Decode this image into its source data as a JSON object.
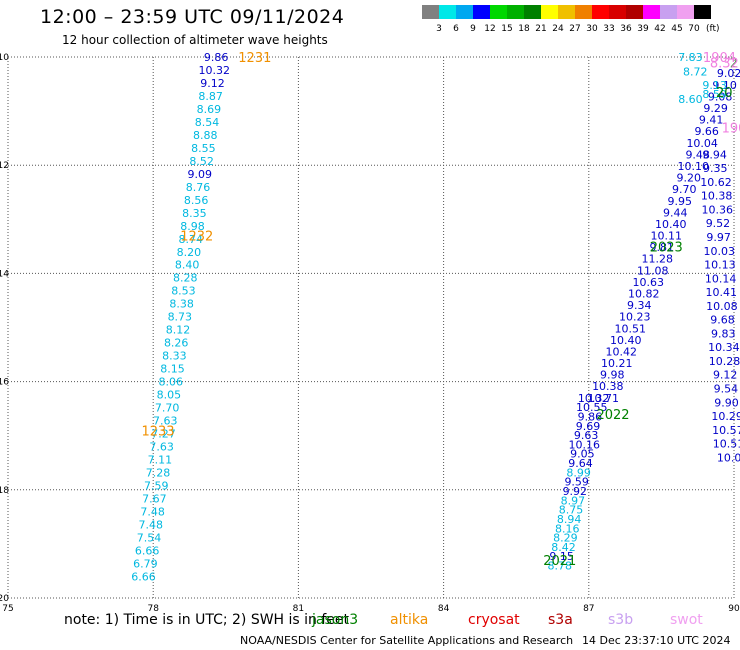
{
  "header": {
    "title": "12:00 – 23:59 UTC 09/11/2024",
    "subtitle": "12 hour collection of altimeter wave heights"
  },
  "colorbar": {
    "colors": [
      "#808080",
      "#00e8e8",
      "#00a8f0",
      "#0000ff",
      "#00d800",
      "#00b000",
      "#008000",
      "#ffff00",
      "#f0c000",
      "#f08000",
      "#ff0000",
      "#d80000",
      "#b00000",
      "#ff00ff",
      "#c8a0f0",
      "#f0a0f0",
      "#000000"
    ],
    "labels": [
      "3",
      "6",
      "9",
      "12",
      "15",
      "18",
      "21",
      "24",
      "27",
      "30",
      "33",
      "36",
      "39",
      "42",
      "45",
      "70"
    ],
    "unit": "(ft)"
  },
  "map": {
    "lon_min": 75,
    "lon_max": 90,
    "lat_min": -20,
    "lat_max": -10,
    "x_ticks": [
      "75",
      "78",
      "81",
      "84",
      "87",
      "90"
    ],
    "y_ticks": [
      "-10",
      "-12",
      "-14",
      "-16",
      "-18",
      "-20"
    ],
    "colors": {
      "cyan": "#00b8e0",
      "blue": "#0000c8",
      "orange": "#f09000",
      "green": "#008000",
      "pink": "#f080e0"
    },
    "tracks": [
      {
        "lon_start": 79.3,
        "lat_start": -10.0,
        "lon_end": 77.8,
        "lat_end": -19.6,
        "values": [
          {
            "v": "9.86",
            "c": "blue"
          },
          {
            "v": "10.32",
            "c": "blue"
          },
          {
            "v": "9.12",
            "c": "blue"
          },
          {
            "v": "8.87",
            "c": "cyan"
          },
          {
            "v": "8.69",
            "c": "cyan"
          },
          {
            "v": "8.54",
            "c": "cyan"
          },
          {
            "v": "8.88",
            "c": "cyan"
          },
          {
            "v": "8.55",
            "c": "cyan"
          },
          {
            "v": "8.52",
            "c": "cyan"
          },
          {
            "v": "9.09",
            "c": "blue"
          },
          {
            "v": "8.76",
            "c": "cyan"
          },
          {
            "v": "8.56",
            "c": "cyan"
          },
          {
            "v": "8.35",
            "c": "cyan"
          },
          {
            "v": "8.98",
            "c": "cyan"
          },
          {
            "v": "8.74",
            "c": "cyan"
          },
          {
            "v": "8.20",
            "c": "cyan"
          },
          {
            "v": "8.40",
            "c": "cyan"
          },
          {
            "v": "8.28",
            "c": "cyan"
          },
          {
            "v": "8.53",
            "c": "cyan"
          },
          {
            "v": "8.38",
            "c": "cyan"
          },
          {
            "v": "8.73",
            "c": "cyan"
          },
          {
            "v": "8.12",
            "c": "cyan"
          },
          {
            "v": "8.26",
            "c": "cyan"
          },
          {
            "v": "8.33",
            "c": "cyan"
          },
          {
            "v": "8.15",
            "c": "cyan"
          },
          {
            "v": "8.06",
            "c": "cyan"
          },
          {
            "v": "8.05",
            "c": "cyan"
          },
          {
            "v": "7.70",
            "c": "cyan"
          },
          {
            "v": "7.63",
            "c": "cyan"
          },
          {
            "v": "7.27",
            "c": "cyan"
          },
          {
            "v": "7.63",
            "c": "cyan"
          },
          {
            "v": "7.11",
            "c": "cyan"
          },
          {
            "v": "7.28",
            "c": "cyan"
          },
          {
            "v": "7.59",
            "c": "cyan"
          },
          {
            "v": "7.67",
            "c": "cyan"
          },
          {
            "v": "7.48",
            "c": "cyan"
          },
          {
            "v": "7.48",
            "c": "cyan"
          },
          {
            "v": "7.54",
            "c": "cyan"
          },
          {
            "v": "6.66",
            "c": "cyan"
          },
          {
            "v": "6.79",
            "c": "cyan"
          },
          {
            "v": "6.66",
            "c": "cyan"
          }
        ]
      },
      {
        "lon_start": 89.9,
        "lat_start": -10.3,
        "lon_end": 87.3,
        "lat_end": -16.3,
        "values": [
          {
            "v": "9.02",
            "c": "blue"
          },
          {
            "v": "9.10",
            "c": "blue"
          },
          {
            "v": "9.08",
            "c": "blue"
          },
          {
            "v": "9.29",
            "c": "blue"
          },
          {
            "v": "9.41",
            "c": "blue"
          },
          {
            "v": "9.66",
            "c": "blue"
          },
          {
            "v": "10.04",
            "c": "blue"
          },
          {
            "v": "9.48",
            "c": "blue"
          },
          {
            "v": "10.10",
            "c": "blue"
          },
          {
            "v": "9.20",
            "c": "blue"
          },
          {
            "v": "9.70",
            "c": "blue"
          },
          {
            "v": "9.95",
            "c": "blue"
          },
          {
            "v": "9.44",
            "c": "blue"
          },
          {
            "v": "10.40",
            "c": "blue"
          },
          {
            "v": "10.11",
            "c": "blue"
          },
          {
            "v": "9.81",
            "c": "blue"
          },
          {
            "v": "11.28",
            "c": "blue"
          },
          {
            "v": "11.08",
            "c": "blue"
          },
          {
            "v": "10.63",
            "c": "blue"
          },
          {
            "v": "10.82",
            "c": "blue"
          },
          {
            "v": "9.34",
            "c": "blue"
          },
          {
            "v": "10.23",
            "c": "blue"
          },
          {
            "v": "10.51",
            "c": "blue"
          },
          {
            "v": "10.40",
            "c": "blue"
          },
          {
            "v": "10.42",
            "c": "blue"
          },
          {
            "v": "10.21",
            "c": "blue"
          },
          {
            "v": "9.98",
            "c": "blue"
          },
          {
            "v": "10.38",
            "c": "blue"
          },
          {
            "v": "10.71",
            "c": "blue"
          }
        ]
      },
      {
        "lon_start": 87.1,
        "lat_start": -16.3,
        "lon_end": 86.4,
        "lat_end": -19.4,
        "values": [
          {
            "v": "10.32",
            "c": "blue"
          },
          {
            "v": "10.55",
            "c": "blue"
          },
          {
            "v": "9.86",
            "c": "blue"
          },
          {
            "v": "9.69",
            "c": "blue"
          },
          {
            "v": "9.63",
            "c": "blue"
          },
          {
            "v": "10.16",
            "c": "blue"
          },
          {
            "v": "9.05",
            "c": "blue"
          },
          {
            "v": "9.64",
            "c": "blue"
          },
          {
            "v": "8.99",
            "c": "cyan"
          },
          {
            "v": "9.59",
            "c": "blue"
          },
          {
            "v": "9.92",
            "c": "blue"
          },
          {
            "v": "8.97",
            "c": "cyan"
          },
          {
            "v": "8.75",
            "c": "cyan"
          },
          {
            "v": "8.94",
            "c": "cyan"
          },
          {
            "v": "8.16",
            "c": "cyan"
          },
          {
            "v": "8.29",
            "c": "cyan"
          },
          {
            "v": "8.42",
            "c": "cyan"
          },
          {
            "v": "9.15",
            "c": "blue"
          },
          {
            "v": "8.78",
            "c": "cyan"
          }
        ]
      },
      {
        "lon_start": 89.6,
        "lat_start": -11.8,
        "lon_end": 89.9,
        "lat_end": -17.4,
        "values": [
          {
            "v": "9.94",
            "c": "blue"
          },
          {
            "v": "9.35",
            "c": "blue"
          },
          {
            "v": "10.62",
            "c": "blue"
          },
          {
            "v": "10.38",
            "c": "blue"
          },
          {
            "v": "10.36",
            "c": "blue"
          },
          {
            "v": "9.52",
            "c": "blue"
          },
          {
            "v": "9.97",
            "c": "blue"
          },
          {
            "v": "10.03",
            "c": "blue"
          },
          {
            "v": "10.13",
            "c": "blue"
          },
          {
            "v": "10.14",
            "c": "blue"
          },
          {
            "v": "10.41",
            "c": "blue"
          },
          {
            "v": "10.08",
            "c": "blue"
          },
          {
            "v": "9.68",
            "c": "blue"
          },
          {
            "v": "9.83",
            "c": "blue"
          },
          {
            "v": "10.34",
            "c": "blue"
          },
          {
            "v": "10.28",
            "c": "blue"
          },
          {
            "v": "9.12",
            "c": "blue"
          },
          {
            "v": "9.54",
            "c": "blue"
          },
          {
            "v": "9.90",
            "c": "blue"
          },
          {
            "v": "10.29",
            "c": "blue"
          },
          {
            "v": "10.57",
            "c": "blue"
          },
          {
            "v": "10.51",
            "c": "blue"
          },
          {
            "v": "10.0",
            "c": "blue"
          }
        ]
      }
    ],
    "extra_values": [
      {
        "v": "7.83",
        "c": "cyan",
        "lon": 89.1,
        "lat": -10.0
      },
      {
        "v": "8.72",
        "c": "cyan",
        "lon": 89.2,
        "lat": -10.27
      },
      {
        "v": "9.13",
        "c": "cyan",
        "lon": 89.6,
        "lat": -10.52
      },
      {
        "v": "8.59",
        "c": "cyan",
        "lon": 89.6,
        "lat": -10.68
      },
      {
        "v": "8.60",
        "c": "cyan",
        "lon": 89.1,
        "lat": -10.78
      }
    ],
    "time_labels": [
      {
        "v": "1231",
        "c": "orange",
        "lon": 80.1,
        "lat": -10.0
      },
      {
        "v": "1232",
        "c": "orange",
        "lon": 78.9,
        "lat": -13.3
      },
      {
        "v": "1233",
        "c": "orange",
        "lon": 78.1,
        "lat": -16.9
      },
      {
        "v": "2022",
        "c": "green",
        "lon": 87.5,
        "lat": -16.6
      },
      {
        "v": "2021",
        "c": "green",
        "lon": 86.4,
        "lat": -19.3
      },
      {
        "v": "2023",
        "c": "green",
        "lon": 88.6,
        "lat": -13.5
      },
      {
        "v": "20",
        "c": "green",
        "lon": 89.8,
        "lat": -10.65
      },
      {
        "v": "2",
        "c": "green",
        "lon": 90.0,
        "lat": -10.1
      },
      {
        "v": "1904",
        "c": "pink",
        "lon": 89.7,
        "lat": -10.0
      },
      {
        "v": "190",
        "c": "pink",
        "lon": 90.0,
        "lat": -11.3
      },
      {
        "v": "8.32",
        "c": "pink",
        "lon": 89.8,
        "lat": -10.1
      }
    ]
  },
  "note": {
    "text": "note: 1) Time is in UTC; 2) SWH is in feet",
    "satellites": [
      {
        "name": "jason3",
        "color": "#008000"
      },
      {
        "name": "altika",
        "color": "#f09000"
      },
      {
        "name": "cryosat",
        "color": "#e00000"
      },
      {
        "name": "s3a",
        "color": "#b00000"
      },
      {
        "name": "s3b",
        "color": "#c8a0f0"
      },
      {
        "name": "swot",
        "color": "#f0a0f0"
      }
    ]
  },
  "footer": {
    "credit": "NOAA/NESDIS Center for Satellite Applications and Research",
    "timestamp": "14 Dec 23:37:10 UTC 2024"
  }
}
